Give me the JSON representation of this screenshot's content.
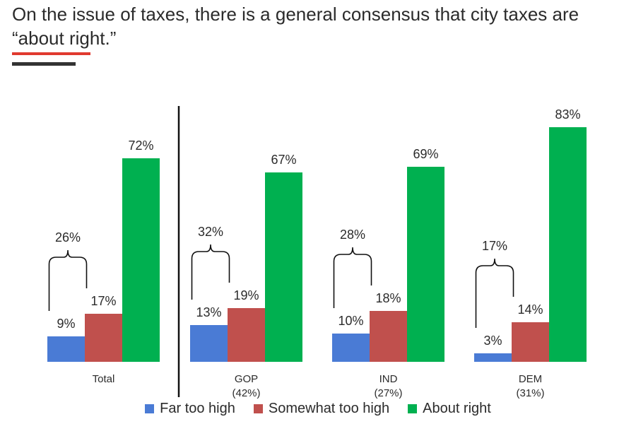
{
  "title": "On the issue of taxes, there is a general consensus that city taxes are “about right.”",
  "colors": {
    "far": "#4a7bd5",
    "somewhat": "#c0504d",
    "about": "#00b050",
    "accent": "#e03a2f",
    "dark": "#333333"
  },
  "chart_data": {
    "type": "bar",
    "title": "On the issue of taxes, there is a general consensus that city taxes are “about right.”",
    "xlabel": "",
    "ylabel": "",
    "ylim": [
      0,
      100
    ],
    "categories": [
      {
        "label": "Total",
        "sublabel": ""
      },
      {
        "label": "GOP",
        "sublabel": "(42%)"
      },
      {
        "label": "IND",
        "sublabel": "(27%)"
      },
      {
        "label": "DEM",
        "sublabel": "(31%)"
      }
    ],
    "series": [
      {
        "name": "Far too high",
        "values": [
          9,
          13,
          10,
          3
        ],
        "labels": [
          "9%",
          "13%",
          "10%",
          "3%"
        ]
      },
      {
        "name": "Somewhat too high",
        "values": [
          17,
          19,
          18,
          14
        ],
        "labels": [
          "17%",
          "19%",
          "18%",
          "14%"
        ]
      },
      {
        "name": "About right",
        "values": [
          72,
          67,
          69,
          83
        ],
        "labels": [
          "72%",
          "67%",
          "69%",
          "83%"
        ]
      }
    ],
    "combined_too_high": {
      "values": [
        26,
        32,
        28,
        17
      ],
      "labels": [
        "26%",
        "32%",
        "28%",
        "17%"
      ]
    },
    "legend_position": "bottom"
  }
}
